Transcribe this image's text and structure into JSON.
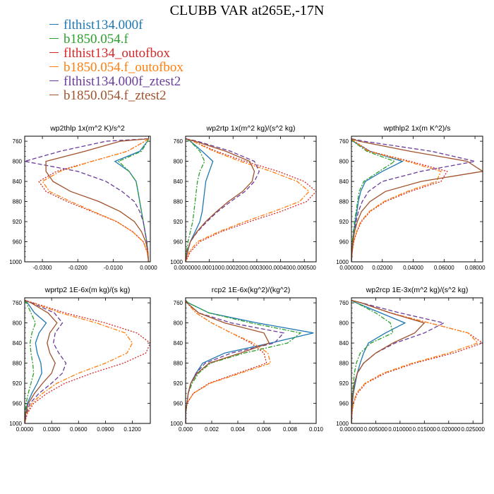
{
  "title": "CLUBB VAR at265E,-17N",
  "legend": [
    {
      "name": "flthist134.000f",
      "color": "#1f77b4",
      "dash": "solid"
    },
    {
      "name": "b1850.054.f",
      "color": "#2ca02c",
      "dash": "dashdot"
    },
    {
      "name": "flthist134_outofbox",
      "color": "#d62728",
      "dash": "dotted"
    },
    {
      "name": "b1850.054.f_outofbox",
      "color": "#ff7f0e",
      "dash": "dashdot"
    },
    {
      "name": "flthist134.000f_ztest2",
      "color": "#6a3d9a",
      "dash": "dashed"
    },
    {
      "name": "b1850.054.f_ztest2",
      "color": "#a0522d",
      "dash": "solid"
    }
  ],
  "chart_data": [
    {
      "type": "line",
      "title": "wp2thlp  1x(m^2 K)/s^2",
      "xlim": [
        -0.035,
        0.0005
      ],
      "ylim": [
        1000,
        750
      ],
      "y_tick_values": [
        760,
        800,
        840,
        880,
        920,
        960,
        1000
      ],
      "y_tick_labels": [
        "760",
        "800",
        "840",
        "880",
        "920",
        "960",
        "1000"
      ],
      "x_tick_values": [
        -0.03,
        -0.02,
        -0.01,
        0
      ],
      "x_tick_labels": [
        "-0.0300",
        "-0.0200",
        "-0.0100",
        "0.0000"
      ],
      "y": [
        755,
        760,
        780,
        800,
        820,
        840,
        860,
        880,
        900,
        920,
        940,
        960,
        980,
        1000
      ],
      "series": [
        {
          "name": "flthist134.000f",
          "values": [
            0,
            -0.0003,
            -0.0025,
            -0.0095,
            -0.0055,
            -0.0035,
            -0.003,
            -0.0025,
            -0.002,
            -0.0015,
            -0.001,
            -0.0005,
            -0.0002,
            0
          ]
        },
        {
          "name": "b1850.054.f",
          "values": [
            0,
            -0.0003,
            -0.002,
            -0.0085,
            -0.0055,
            -0.0035,
            -0.003,
            -0.0025,
            -0.002,
            -0.0015,
            -0.001,
            -0.0005,
            -0.0002,
            0
          ]
        },
        {
          "name": "flthist134_outofbox",
          "values": [
            0,
            -0.001,
            -0.006,
            -0.016,
            -0.026,
            -0.031,
            -0.029,
            -0.023,
            -0.016,
            -0.009,
            -0.0045,
            -0.0015,
            -0.0004,
            0
          ]
        },
        {
          "name": "b1850.054.f_outofbox",
          "values": [
            0,
            -0.001,
            -0.006,
            -0.016,
            -0.025,
            -0.03,
            -0.028,
            -0.022,
            -0.0155,
            -0.009,
            -0.0045,
            -0.0015,
            -0.0004,
            0
          ]
        },
        {
          "name": "flthist134.000f_ztest2",
          "values": [
            0,
            -0.012,
            -0.025,
            -0.035,
            -0.02,
            -0.012,
            -0.0075,
            -0.004,
            -0.0025,
            -0.0015,
            -0.001,
            -0.0005,
            -0.0002,
            0
          ]
        },
        {
          "name": "b1850.054.f_ztest2",
          "values": [
            0,
            -0.008,
            -0.018,
            -0.029,
            -0.029,
            -0.027,
            -0.022,
            -0.014,
            -0.008,
            -0.004,
            -0.002,
            -0.0008,
            -0.0002,
            0
          ]
        }
      ]
    },
    {
      "type": "line",
      "title": "wp2rtp  1x(m^2 kg)/(s^2 kg)",
      "xlim": [
        0,
        0.00055
      ],
      "ylim": [
        1000,
        750
      ],
      "y_tick_values": [
        760,
        800,
        840,
        880,
        920,
        960,
        1000
      ],
      "y_tick_labels": [
        "760",
        "800",
        "840",
        "880",
        "920",
        "960",
        "1000"
      ],
      "x_tick_values": [
        0,
        0.0001,
        0.0002,
        0.0003,
        0.0004,
        0.0005
      ],
      "x_tick_labels": [
        "0.000000",
        "0.000100",
        "0.000200",
        "0.000300",
        "0.000400",
        "0.000500"
      ],
      "y": [
        755,
        760,
        780,
        800,
        820,
        840,
        860,
        880,
        900,
        920,
        940,
        960,
        980,
        1000
      ],
      "series": [
        {
          "name": "flthist134.000f",
          "values": [
            0,
            2e-05,
            7e-05,
            0.000115,
            0.0001,
            8.5e-05,
            8e-05,
            7.5e-05,
            7e-05,
            6e-05,
            4e-05,
            2e-05,
            8e-06,
            0
          ]
        },
        {
          "name": "b1850.054.f",
          "values": [
            0,
            2e-05,
            6e-05,
            8e-05,
            6e-05,
            5e-05,
            4.5e-05,
            4e-05,
            3.5e-05,
            3e-05,
            2e-05,
            1e-05,
            4e-06,
            0
          ]
        },
        {
          "name": "flthist134_outofbox",
          "values": [
            0,
            3e-05,
            0.00013,
            0.00025,
            0.00039,
            0.0005,
            0.00055,
            0.00051,
            0.0004,
            0.00027,
            0.00015,
            6e-05,
            2e-05,
            0
          ]
        },
        {
          "name": "b1850.054.f_outofbox",
          "values": [
            0,
            3e-05,
            0.00012,
            0.00023,
            0.00036,
            0.00047,
            0.00052,
            0.00048,
            0.00037,
            0.00025,
            0.00014,
            5e-05,
            1.5e-05,
            0
          ]
        },
        {
          "name": "flthist134.000f_ztest2",
          "values": [
            0,
            5e-05,
            0.00019,
            0.00029,
            0.00031,
            0.00029,
            0.00025,
            0.00019,
            0.000135,
            9e-05,
            5e-05,
            2e-05,
            8e-06,
            0
          ]
        },
        {
          "name": "b1850.054.f_ztest2",
          "values": [
            0,
            4e-05,
            0.00017,
            0.00027,
            0.00029,
            0.00028,
            0.00024,
            0.00018,
            0.00013,
            8.5e-05,
            4.8e-05,
            2e-05,
            6e-06,
            0
          ]
        }
      ]
    },
    {
      "type": "line",
      "title": "wpthlp2  1x(m K^2)/s",
      "xlim": [
        0,
        0.085
      ],
      "ylim": [
        1000,
        750
      ],
      "y_tick_values": [
        760,
        800,
        840,
        880,
        920,
        960,
        1000
      ],
      "y_tick_labels": [
        "760",
        "800",
        "840",
        "880",
        "920",
        "960",
        "1000"
      ],
      "x_tick_values": [
        0,
        0.02,
        0.04,
        0.06,
        0.08
      ],
      "x_tick_labels": [
        "0.000000",
        "0.02000",
        "0.04000",
        "0.06000",
        "0.08000"
      ],
      "y": [
        755,
        760,
        780,
        800,
        820,
        840,
        860,
        880,
        900,
        920,
        940,
        960,
        980,
        1000
      ],
      "series": [
        {
          "name": "flthist134.000f",
          "values": [
            0,
            0.001,
            0.012,
            0.033,
            0.02,
            0.009,
            0.006,
            0.0045,
            0.0035,
            0.0025,
            0.0015,
            0.0008,
            0.0003,
            0
          ]
        },
        {
          "name": "b1850.054.f",
          "values": [
            0,
            0.001,
            0.01,
            0.028,
            0.018,
            0.008,
            0.005,
            0.004,
            0.003,
            0.002,
            0.0012,
            0.0006,
            0.0002,
            0
          ]
        },
        {
          "name": "flthist134_outofbox",
          "values": [
            0,
            0.002,
            0.012,
            0.038,
            0.062,
            0.058,
            0.038,
            0.022,
            0.012,
            0.0065,
            0.0035,
            0.0015,
            0.0005,
            0
          ]
        },
        {
          "name": "b1850.054.f_outofbox",
          "values": [
            0,
            0.002,
            0.011,
            0.036,
            0.058,
            0.055,
            0.036,
            0.021,
            0.0115,
            0.006,
            0.0033,
            0.0014,
            0.0005,
            0
          ]
        },
        {
          "name": "flthist134.000f_ztest2",
          "values": [
            0,
            0.008,
            0.052,
            0.08,
            0.045,
            0.02,
            0.011,
            0.007,
            0.0045,
            0.003,
            0.0018,
            0.0009,
            0.0003,
            0
          ]
        },
        {
          "name": "b1850.054.f_ztest2",
          "values": [
            0,
            0.005,
            0.038,
            0.075,
            0.085,
            0.045,
            0.022,
            0.012,
            0.0065,
            0.0038,
            0.002,
            0.001,
            0.0003,
            0
          ]
        }
      ]
    },
    {
      "type": "line",
      "title": "wprtp2  1E-6x(m kg)/(s kg)",
      "xlim": [
        0,
        0.14
      ],
      "ylim": [
        1000,
        750
      ],
      "y_tick_values": [
        760,
        800,
        840,
        880,
        920,
        960,
        1000
      ],
      "y_tick_labels": [
        "760",
        "800",
        "840",
        "880",
        "920",
        "960",
        "1000"
      ],
      "x_tick_values": [
        0,
        0.03,
        0.06,
        0.09,
        0.12
      ],
      "x_tick_labels": [
        "0.0000",
        "0.0300",
        "0.0600",
        "0.0900",
        "0.1200"
      ],
      "y": [
        755,
        760,
        780,
        800,
        820,
        840,
        860,
        880,
        900,
        920,
        940,
        960,
        980,
        1000
      ],
      "series": [
        {
          "name": "flthist134.000f",
          "values": [
            0,
            0.003,
            0.011,
            0.024,
            0.016,
            0.012,
            0.014,
            0.018,
            0.019,
            0.014,
            0.008,
            0.003,
            0.001,
            0
          ]
        },
        {
          "name": "b1850.054.f",
          "values": [
            0,
            0.002,
            0.007,
            0.012,
            0.008,
            0.006,
            0.007,
            0.009,
            0.01,
            0.007,
            0.004,
            0.0015,
            0.0005,
            0
          ]
        },
        {
          "name": "flthist134_outofbox",
          "values": [
            0,
            0.01,
            0.045,
            0.09,
            0.125,
            0.14,
            0.135,
            0.11,
            0.075,
            0.045,
            0.025,
            0.01,
            0.003,
            0
          ]
        },
        {
          "name": "b1850.054.f_outofbox",
          "values": [
            0,
            0.009,
            0.04,
            0.08,
            0.112,
            0.12,
            0.114,
            0.09,
            0.06,
            0.036,
            0.02,
            0.008,
            0.0025,
            0
          ]
        },
        {
          "name": "flthist134.000f_ztest2",
          "values": [
            0,
            0.008,
            0.033,
            0.042,
            0.034,
            0.032,
            0.038,
            0.046,
            0.042,
            0.03,
            0.016,
            0.006,
            0.002,
            0
          ]
        },
        {
          "name": "b1850.054.f_ztest2",
          "values": [
            0,
            0.007,
            0.026,
            0.036,
            0.028,
            0.025,
            0.028,
            0.034,
            0.03,
            0.02,
            0.011,
            0.004,
            0.0012,
            0
          ]
        }
      ]
    },
    {
      "type": "line",
      "title": "rcp2  1E-6x(kg^2)/(kg^2)",
      "xlim": [
        0,
        0.01
      ],
      "ylim": [
        1000,
        750
      ],
      "y_tick_values": [
        760,
        800,
        840,
        880,
        920,
        960,
        1000
      ],
      "y_tick_labels": [
        "760",
        "800",
        "840",
        "880",
        "920",
        "960",
        "1000"
      ],
      "x_tick_values": [
        0,
        0.002,
        0.004,
        0.006,
        0.008,
        0.01
      ],
      "x_tick_labels": [
        "0.000",
        "0.002",
        "0.004",
        "0.006",
        "0.008",
        "0.010"
      ],
      "y": [
        755,
        760,
        780,
        800,
        820,
        840,
        860,
        880,
        900,
        920,
        940,
        960,
        980,
        1000
      ],
      "series": [
        {
          "name": "flthist134.000f",
          "values": [
            0,
            0.0002,
            0.0018,
            0.0055,
            0.0098,
            0.0065,
            0.003,
            0.0013,
            0.0008,
            0.0004,
            0.0002,
            0.0001,
            0,
            0
          ]
        },
        {
          "name": "b1850.054.f",
          "values": [
            0,
            0.0002,
            0.0018,
            0.005,
            0.0088,
            0.0078,
            0.0045,
            0.0019,
            0.001,
            0.0005,
            0.0002,
            0.0001,
            0,
            0
          ]
        },
        {
          "name": "flthist134_outofbox",
          "values": [
            0,
            0.0001,
            0.0008,
            0.002,
            0.0035,
            0.005,
            0.006,
            0.0062,
            0.004,
            0.0018,
            0.0006,
            0.0001,
            0,
            0
          ]
        },
        {
          "name": "b1850.054.f_outofbox",
          "values": [
            0,
            0.0001,
            0.0008,
            0.002,
            0.0035,
            0.0052,
            0.0063,
            0.0065,
            0.0042,
            0.0019,
            0.0006,
            0.0001,
            0,
            0
          ]
        },
        {
          "name": "flthist134.000f_ztest2",
          "values": [
            0,
            0.0001,
            0.001,
            0.0035,
            0.0075,
            0.0068,
            0.0035,
            0.0015,
            0.0008,
            0.0004,
            0.0002,
            0.0001,
            0,
            0
          ]
        },
        {
          "name": "b1850.054.f_ztest2",
          "values": [
            0,
            0.0001,
            0.001,
            0.003,
            0.006,
            0.0064,
            0.0042,
            0.0018,
            0.0009,
            0.0004,
            0.0002,
            0.0001,
            0,
            0
          ]
        }
      ]
    },
    {
      "type": "line",
      "title": "wp2rcp  1E-3x(m^2 kg)/(s^2 kg)",
      "xlim": [
        0,
        0.027
      ],
      "ylim": [
        1000,
        750
      ],
      "y_tick_values": [
        760,
        800,
        840,
        880,
        920,
        960,
        1000
      ],
      "y_tick_labels": [
        "760",
        "800",
        "840",
        "880",
        "920",
        "960",
        "1000"
      ],
      "x_tick_values": [
        0,
        0.005,
        0.01,
        0.015,
        0.02,
        0.025
      ],
      "x_tick_labels": [
        "0.000000",
        "0.005000",
        "0.010000",
        "0.015000",
        "0.020000",
        "0.025000"
      ],
      "y": [
        755,
        760,
        780,
        800,
        820,
        840,
        860,
        880,
        900,
        920,
        940,
        960,
        980,
        1000
      ],
      "series": [
        {
          "name": "flthist134.000f",
          "values": [
            0,
            0.001,
            0.006,
            0.011,
            0.007,
            0.0035,
            0.0025,
            0.0018,
            0.0012,
            0.0008,
            0.0004,
            0.0002,
            0.0001,
            0
          ]
        },
        {
          "name": "b1850.054.f",
          "values": [
            0,
            0.001,
            0.005,
            0.008,
            0.0085,
            0.004,
            0.0018,
            0.001,
            0.0006,
            0.0004,
            0.0002,
            0.0001,
            0,
            0
          ]
        },
        {
          "name": "flthist134_outofbox",
          "values": [
            0,
            0.002,
            0.008,
            0.016,
            0.024,
            0.027,
            0.021,
            0.013,
            0.007,
            0.003,
            0.0012,
            0.0004,
            0.0001,
            0
          ]
        },
        {
          "name": "b1850.054.f_outofbox",
          "values": [
            0,
            0.002,
            0.008,
            0.016,
            0.024,
            0.026,
            0.02,
            0.0125,
            0.0065,
            0.0028,
            0.001,
            0.0004,
            0.0001,
            0
          ]
        },
        {
          "name": "flthist134.000f_ztest2",
          "values": [
            0,
            0.002,
            0.01,
            0.019,
            0.015,
            0.009,
            0.005,
            0.0025,
            0.0012,
            0.0006,
            0.0003,
            0.0001,
            0,
            0
          ]
        },
        {
          "name": "b1850.054.f_ztest2",
          "values": [
            0,
            0.002,
            0.008,
            0.015,
            0.013,
            0.0085,
            0.005,
            0.0025,
            0.0012,
            0.0006,
            0.0003,
            0.0001,
            0,
            0
          ]
        }
      ]
    }
  ]
}
